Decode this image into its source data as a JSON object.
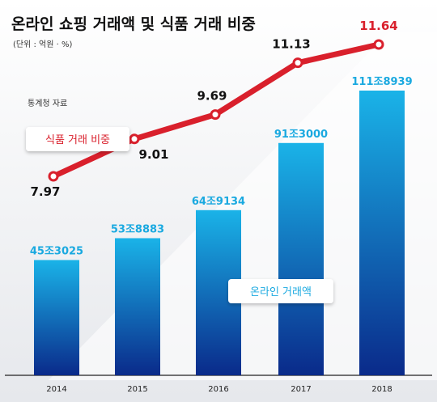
{
  "title": "온라인 쇼핑 거래액 및 식품 거래 비중",
  "unit_note": "(단위 : 억원 · %)",
  "source": "통계청 자료",
  "colors": {
    "line": "#d9202c",
    "bar_top": "#1ab3e8",
    "bar_bottom": "#0a2a8a",
    "bar_label": "#1aa9e0",
    "title": "#111111"
  },
  "chart_data": {
    "type": "bar",
    "categories": [
      "2014",
      "2015",
      "2016",
      "2017",
      "2018"
    ],
    "series": [
      {
        "name": "온라인 거래액",
        "type": "bar",
        "values": [
          453025,
          538883,
          649134,
          913000,
          1118939
        ],
        "labels": [
          "45조3025",
          "53조8883",
          "64조9134",
          "91조3000",
          "111조8939"
        ]
      },
      {
        "name": "식품 거래 비중",
        "type": "line",
        "values": [
          7.97,
          9.01,
          9.69,
          11.13,
          11.64
        ],
        "labels": [
          "7.97",
          "9.01",
          "9.69",
          "11.13",
          "11.64"
        ]
      }
    ],
    "legend": [
      "식품 거래 비중",
      "온라인 거래액"
    ],
    "grid": false
  }
}
